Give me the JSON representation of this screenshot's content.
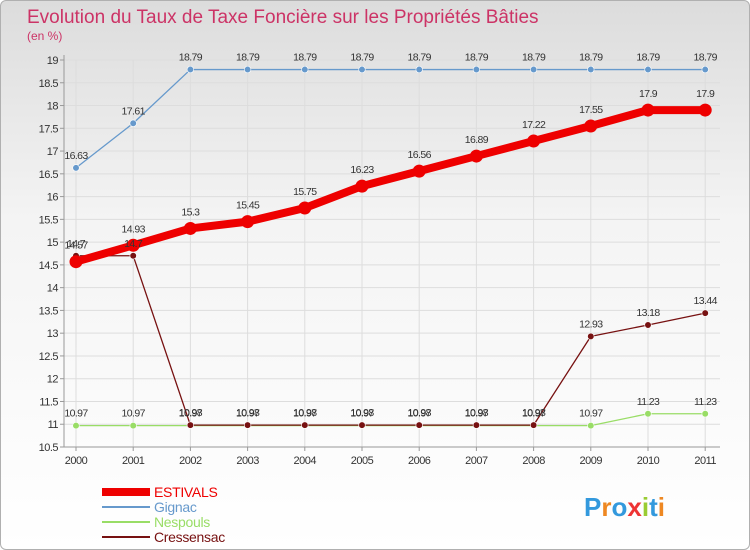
{
  "chart_data": {
    "type": "line",
    "title": "Evolution du Taux de Taxe Foncière sur les Propriétés Bâties",
    "subtitle": "(en %)",
    "xlabel": "",
    "ylabel": "",
    "x": [
      "2000",
      "2001",
      "2002",
      "2003",
      "2004",
      "2005",
      "2006",
      "2007",
      "2008",
      "2009",
      "2010",
      "2011"
    ],
    "ylim": [
      10.5,
      19
    ],
    "yticks": [
      "10.5",
      "11",
      "11.5",
      "12",
      "12.5",
      "13",
      "13.5",
      "14",
      "14.5",
      "15",
      "15.5",
      "16",
      "16.5",
      "17",
      "17.5",
      "18",
      "18.5",
      "19"
    ],
    "legend_position": "bottom-left",
    "series": [
      {
        "name": "ESTIVALS",
        "color": "#ee0000",
        "thick": true,
        "values": [
          14.57,
          14.93,
          15.3,
          15.45,
          15.75,
          16.23,
          16.56,
          16.89,
          17.22,
          17.55,
          17.9,
          17.9
        ],
        "labels": [
          "14.57",
          "14.93",
          "15.3",
          "15.45",
          "15.75",
          "16.23",
          "16.56",
          "16.89",
          "17.22",
          "17.55",
          "17.9",
          "17.9"
        ]
      },
      {
        "name": "Gignac",
        "color": "#6699cc",
        "thick": false,
        "values": [
          16.63,
          17.61,
          18.79,
          18.79,
          18.79,
          18.79,
          18.79,
          18.79,
          18.79,
          18.79,
          18.79,
          18.79
        ],
        "labels": [
          "16.63",
          "17.61",
          "18.79",
          "18.79",
          "18.79",
          "18.79",
          "18.79",
          "18.79",
          "18.79",
          "18.79",
          "18.79",
          "18.79"
        ]
      },
      {
        "name": "Nespouls",
        "color": "#99dd66",
        "thick": false,
        "values": [
          10.97,
          10.97,
          10.97,
          10.97,
          10.97,
          10.97,
          10.97,
          10.97,
          10.97,
          10.97,
          11.23,
          11.23
        ],
        "labels": [
          "10.97",
          "10.97",
          "10.97",
          "10.97",
          "10.97",
          "10.97",
          "10.97",
          "10.97",
          "10.97",
          "10.97",
          "11.23",
          "11.23"
        ]
      },
      {
        "name": "Cressensac",
        "color": "#771111",
        "thick": false,
        "values": [
          14.7,
          14.7,
          10.98,
          10.98,
          10.98,
          10.98,
          10.98,
          10.98,
          10.98,
          12.93,
          13.18,
          13.44
        ],
        "labels": [
          "14.7",
          "14.7",
          "10.98",
          "10.98",
          "10.98",
          "10.98",
          "10.98",
          "10.98",
          "10.98",
          "12.93",
          "13.18",
          "13.44"
        ]
      }
    ]
  },
  "logo": {
    "text": "Proxiti",
    "colors": [
      "#3399dd",
      "#ee8822",
      "#3399dd",
      "#ee3333",
      "#99cc33",
      "#3399dd",
      "#ee8822"
    ]
  }
}
